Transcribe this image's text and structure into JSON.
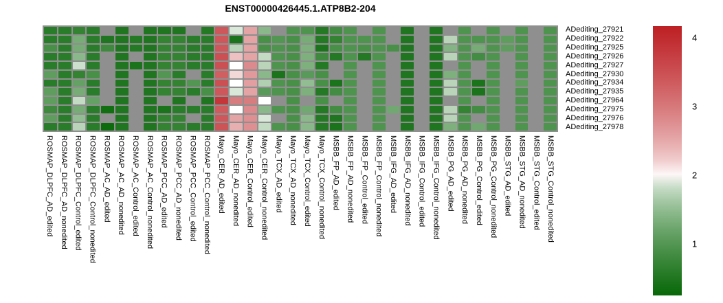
{
  "title": "ENST00000426445.1.ATP8B2-204",
  "chart_data": {
    "type": "heatmap",
    "title": "ENST00000426445.1.ATP8B2-204",
    "rows": [
      "ADediting_27921",
      "ADediting_27922",
      "ADediting_27925",
      "ADediting_27926",
      "ADediting_27927",
      "ADediting_27930",
      "ADediting_27934",
      "ADediting_27935",
      "ADediting_27964",
      "ADediting_27975",
      "ADediting_27976",
      "ADediting_27978"
    ],
    "columns": [
      "ROSMAP_DLPFC_AD_edited",
      "ROSMAP_DLPFC_AD_nonedited",
      "ROSMAP_DLPFC_Control_edited",
      "ROSMAP_DLPFC_Control_nonedited",
      "ROSMAP_AC_AD_edited",
      "ROSMAP_AC_AD_nonedited",
      "ROSMAP_AC_Control_edited",
      "ROSMAP_AC_Control_nonedited",
      "ROSMAP_PCC_AD_edited",
      "ROSMAP_PCC_AD_nonedited",
      "ROSMAP_PCC_Control_edited",
      "ROSMAP_PCC_Control_nonedited",
      "Mayo_CER_AD_edited",
      "Mayo_CER_AD_nonedited",
      "Mayo_CER_Control_edited",
      "Mayo_CER_Control_nonedited",
      "Mayo_TCX_AD_edited",
      "Mayo_TCX_AD_nonedited",
      "Mayo_TCX_Control_edited",
      "Mayo_TCX_Control_nonedited",
      "MSBB_FP_AD_edited",
      "MSBB_FP_AD_nonedited",
      "MSBB_FP_Control_edited",
      "MSBB_FP_Control_nonedited",
      "MSBB_IFG_AD_edited",
      "MSBB_IFG_AD_nonedited",
      "MSBB_IFG_Control_edited",
      "MSBB_IFG_Control_nonedited",
      "MSBB_PG_AD_edited",
      "MSBB_PG_AD_nonedited",
      "MSBB_PG_Control_edited",
      "MSBB_PG_Control_nonedited",
      "MSBB_STG_AD_edited",
      "MSBB_STG_AD_nonedited",
      "MSBB_STG_Control_edited",
      "MSBB_STG_Control_nonedited"
    ],
    "values": [
      [
        0.6,
        0.6,
        0.7,
        0.6,
        null,
        0.5,
        null,
        0.5,
        0.5,
        0.5,
        null,
        0.55,
        3.4,
        1.9,
        2.55,
        1.45,
        null,
        0.95,
        0.95,
        0.55,
        0.85,
        0.95,
        null,
        0.95,
        null,
        0.5,
        null,
        0.5,
        null,
        0.95,
        null,
        0.95,
        null,
        0.95,
        null,
        0.95
      ],
      [
        0.6,
        0.6,
        1.3,
        0.6,
        0.5,
        0.5,
        0.55,
        0.5,
        0.7,
        0.7,
        0.6,
        0.6,
        3.4,
        0.45,
        2.55,
        0.9,
        1.0,
        0.9,
        1.3,
        0.55,
        0.7,
        0.95,
        0.95,
        0.95,
        null,
        0.5,
        null,
        0.5,
        1.75,
        0.95,
        0.95,
        0.95,
        1.1,
        0.95,
        null,
        0.95
      ],
      [
        0.9,
        0.6,
        1.3,
        0.6,
        0.8,
        0.5,
        0.55,
        0.5,
        0.7,
        0.7,
        0.6,
        0.6,
        3.4,
        1.75,
        2.55,
        0.9,
        0.95,
        0.9,
        1.35,
        0.45,
        0.9,
        0.95,
        0.9,
        0.95,
        0.9,
        0.5,
        null,
        0.5,
        1.4,
        0.95,
        1.3,
        0.95,
        1.1,
        0.95,
        null,
        0.95
      ],
      [
        0.6,
        0.6,
        1.45,
        0.6,
        null,
        0.5,
        null,
        0.5,
        0.7,
        0.7,
        0.6,
        0.6,
        3.5,
        2.3,
        2.55,
        1.8,
        0.95,
        0.9,
        1.35,
        0.8,
        0.55,
        0.95,
        0.55,
        0.95,
        null,
        0.5,
        null,
        0.5,
        1.75,
        0.95,
        0.85,
        0.95,
        null,
        0.95,
        null,
        0.95
      ],
      [
        0.6,
        0.6,
        1.85,
        0.6,
        null,
        0.5,
        0.45,
        0.5,
        0.7,
        0.7,
        0.6,
        0.6,
        3.5,
        2.0,
        2.8,
        1.75,
        0.95,
        0.9,
        1.35,
        0.55,
        null,
        0.95,
        null,
        0.95,
        null,
        0.5,
        null,
        0.5,
        null,
        0.95,
        null,
        0.95,
        null,
        0.95,
        null,
        0.95
      ],
      [
        1.1,
        0.6,
        0.7,
        0.9,
        null,
        0.5,
        null,
        0.5,
        1.0,
        0.6,
        null,
        0.6,
        3.3,
        2.15,
        2.65,
        1.45,
        0.45,
        0.9,
        1.05,
        0.9,
        null,
        0.95,
        null,
        0.95,
        null,
        0.5,
        null,
        0.5,
        1.35,
        0.95,
        null,
        0.95,
        null,
        0.95,
        null,
        0.95
      ],
      [
        0.6,
        0.6,
        1.15,
        0.6,
        null,
        0.5,
        null,
        0.5,
        0.7,
        0.7,
        1.0,
        0.6,
        3.5,
        2.0,
        2.6,
        1.7,
        0.95,
        0.9,
        1.5,
        0.9,
        0.45,
        0.95,
        null,
        0.95,
        null,
        0.5,
        null,
        0.5,
        1.75,
        0.95,
        0.45,
        0.95,
        null,
        1.1,
        null,
        0.95
      ],
      [
        1.1,
        0.6,
        1.3,
        0.6,
        null,
        0.5,
        null,
        0.5,
        0.7,
        0.7,
        0.6,
        0.9,
        3.4,
        1.9,
        2.55,
        1.05,
        0.95,
        0.9,
        1.35,
        0.55,
        0.85,
        0.95,
        null,
        0.95,
        null,
        0.5,
        null,
        0.5,
        1.75,
        0.95,
        0.45,
        0.95,
        null,
        0.95,
        null,
        0.95
      ],
      [
        1.1,
        0.6,
        1.8,
        1.15,
        null,
        0.5,
        null,
        0.5,
        null,
        0.5,
        null,
        0.5,
        3.85,
        2.95,
        2.95,
        2.0,
        null,
        0.9,
        null,
        0.9,
        null,
        0.95,
        null,
        0.95,
        null,
        0.5,
        null,
        0.5,
        null,
        0.95,
        null,
        0.95,
        null,
        0.95,
        null,
        0.95
      ],
      [
        0.8,
        0.6,
        1.3,
        0.6,
        0.35,
        0.5,
        null,
        0.5,
        0.45,
        0.6,
        0.6,
        0.6,
        3.35,
        2.0,
        2.8,
        1.45,
        0.95,
        0.9,
        1.25,
        0.55,
        0.85,
        0.95,
        null,
        0.95,
        1.25,
        0.5,
        null,
        0.5,
        1.75,
        0.7,
        0.85,
        0.95,
        null,
        0.95,
        null,
        0.95
      ],
      [
        1.1,
        0.6,
        1.5,
        0.6,
        null,
        0.5,
        null,
        0.5,
        0.7,
        0.7,
        null,
        0.6,
        3.4,
        2.55,
        2.75,
        1.9,
        null,
        0.9,
        1.45,
        0.55,
        0.5,
        0.95,
        null,
        0.95,
        null,
        0.5,
        null,
        0.5,
        1.75,
        0.95,
        null,
        0.95,
        null,
        0.95,
        null,
        0.95
      ],
      [
        0.6,
        0.6,
        1.75,
        0.6,
        0.3,
        0.5,
        null,
        0.5,
        0.7,
        0.7,
        0.6,
        0.6,
        3.45,
        2.45,
        2.75,
        1.8,
        0.95,
        0.9,
        1.45,
        0.55,
        0.45,
        0.95,
        null,
        0.95,
        null,
        0.5,
        null,
        0.5,
        1.35,
        0.95,
        1.25,
        0.95,
        null,
        0.95,
        null,
        0.95
      ]
    ],
    "na_color": "#8f8f8f",
    "colormap": {
      "low": "#086808",
      "mid": "#ffffff",
      "high": "#bd2024",
      "low_value": 0.25,
      "mid_value": 2,
      "high_value": 4.17,
      "gamma": 0.65
    },
    "legend_position": "right",
    "colorbar_ticks": [
      4,
      3,
      2,
      1
    ]
  }
}
